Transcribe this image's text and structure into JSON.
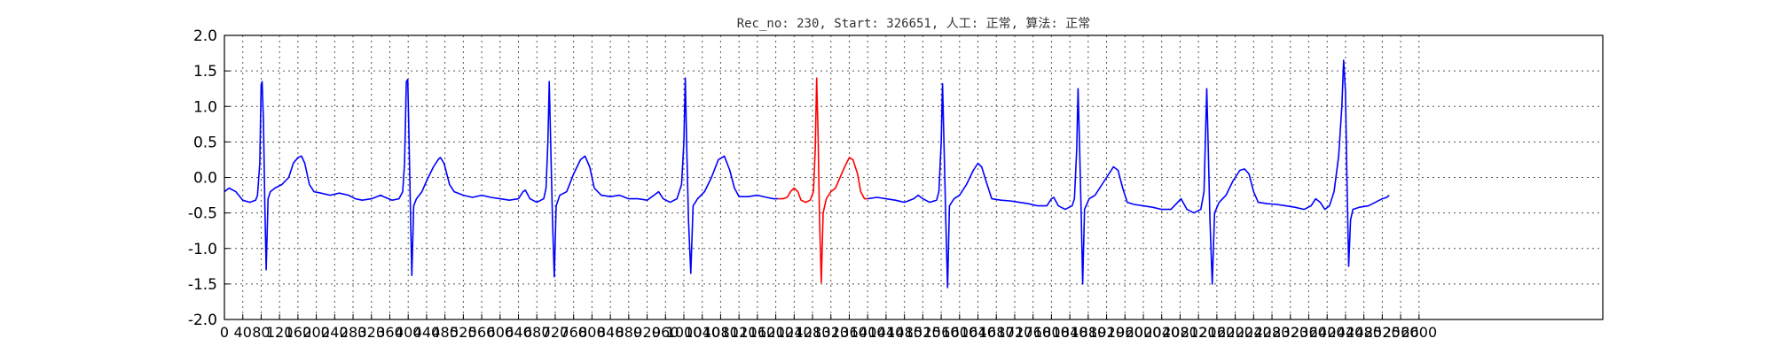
{
  "chart_data": {
    "type": "line",
    "title": "Rec_no: 230, Start: 326651, 人工: 正常, 算法: 正常",
    "xlabel": "",
    "ylabel": "",
    "xlim": [
      0,
      3000
    ],
    "ylim": [
      -2.0,
      2.0
    ],
    "grid": true,
    "grid_style": "dotted",
    "y_ticks": [
      "-2.0",
      "-1.5",
      "-1.0",
      "-0.5",
      "0.0",
      "0.5",
      "1.0",
      "1.5",
      "2.0"
    ],
    "x_ticks": [
      0,
      40,
      80,
      120,
      160,
      200,
      240,
      280,
      320,
      360,
      400,
      440,
      480,
      520,
      560,
      600,
      640,
      680,
      720,
      760,
      800,
      840,
      880,
      920,
      960,
      1000,
      1040,
      1080,
      1120,
      1160,
      1200,
      1240,
      1280,
      1320,
      1360,
      1400,
      1440,
      1480,
      1520,
      1560,
      1600,
      1640,
      1680,
      1720,
      1760,
      1800,
      1840,
      1880,
      1920,
      1960,
      2000,
      2040,
      2080,
      2120,
      2160,
      2200,
      2240,
      2280,
      2320,
      2360,
      2400,
      2440,
      2480,
      2520,
      2560,
      2600
    ],
    "x_tick_labels": [
      "0",
      "40",
      "80",
      "120",
      "160",
      "200",
      "240",
      "280",
      "320",
      "360",
      "400",
      "440",
      "480",
      "520",
      "560",
      "600",
      "640",
      "680",
      "720",
      "760",
      "800",
      "840",
      "880",
      "920",
      "960",
      "1000",
      "1040",
      "1080",
      "1120",
      "1160",
      "1200",
      "1240",
      "1280",
      "1320",
      "1360",
      "1400",
      "1440",
      "1480",
      "1520",
      "1560",
      "1600",
      "1640",
      "1680",
      "1720",
      "1760",
      "1800",
      "1840",
      "1880",
      "1920",
      "1960",
      "2000",
      "2040",
      "2080",
      "2120",
      "2160",
      "2200",
      "2240",
      "2280",
      "2320",
      "2360",
      "2400",
      "2440",
      "2480",
      "2520",
      "2560",
      "2600"
    ],
    "series": [
      {
        "color": "#0000ff",
        "points": [
          [
            0,
            -0.2
          ],
          [
            10,
            -0.15
          ],
          [
            25,
            -0.2
          ],
          [
            40,
            -0.32
          ],
          [
            55,
            -0.35
          ],
          [
            68,
            -0.32
          ],
          [
            72,
            -0.25
          ],
          [
            77,
            0.2
          ],
          [
            80,
            1.3
          ],
          [
            82,
            1.35
          ],
          [
            85,
            0.8
          ],
          [
            88,
            -0.4
          ],
          [
            91,
            -1.3
          ],
          [
            95,
            -0.3
          ],
          [
            100,
            -0.2
          ],
          [
            110,
            -0.15
          ],
          [
            125,
            -0.1
          ],
          [
            140,
            0.0
          ],
          [
            150,
            0.2
          ],
          [
            160,
            0.28
          ],
          [
            168,
            0.3
          ],
          [
            175,
            0.2
          ],
          [
            185,
            -0.1
          ],
          [
            195,
            -0.2
          ],
          [
            210,
            -0.22
          ],
          [
            230,
            -0.25
          ],
          [
            250,
            -0.22
          ],
          [
            270,
            -0.25
          ],
          [
            285,
            -0.3
          ],
          [
            300,
            -0.32
          ],
          [
            320,
            -0.3
          ],
          [
            340,
            -0.25
          ],
          [
            350,
            -0.28
          ],
          [
            365,
            -0.32
          ],
          [
            380,
            -0.3
          ],
          [
            388,
            -0.2
          ],
          [
            392,
            0.2
          ],
          [
            396,
            1.35
          ],
          [
            399,
            1.38
          ],
          [
            402,
            0.5
          ],
          [
            405,
            -0.5
          ],
          [
            408,
            -1.38
          ],
          [
            412,
            -0.4
          ],
          [
            418,
            -0.3
          ],
          [
            430,
            -0.2
          ],
          [
            440,
            -0.05
          ],
          [
            455,
            0.15
          ],
          [
            465,
            0.25
          ],
          [
            470,
            0.28
          ],
          [
            478,
            0.2
          ],
          [
            490,
            -0.1
          ],
          [
            500,
            -0.2
          ],
          [
            520,
            -0.25
          ],
          [
            540,
            -0.28
          ],
          [
            560,
            -0.25
          ],
          [
            580,
            -0.28
          ],
          [
            600,
            -0.3
          ],
          [
            620,
            -0.32
          ],
          [
            640,
            -0.3
          ],
          [
            650,
            -0.2
          ],
          [
            655,
            -0.18
          ],
          [
            665,
            -0.3
          ],
          [
            680,
            -0.35
          ],
          [
            695,
            -0.3
          ],
          [
            700,
            -0.15
          ],
          [
            704,
            0.5
          ],
          [
            707,
            1.35
          ],
          [
            710,
            0.5
          ],
          [
            714,
            -0.6
          ],
          [
            718,
            -1.4
          ],
          [
            722,
            -0.4
          ],
          [
            730,
            -0.25
          ],
          [
            745,
            -0.2
          ],
          [
            760,
            0.05
          ],
          [
            775,
            0.25
          ],
          [
            785,
            0.3
          ],
          [
            795,
            0.15
          ],
          [
            805,
            -0.15
          ],
          [
            820,
            -0.25
          ],
          [
            840,
            -0.27
          ],
          [
            860,
            -0.25
          ],
          [
            880,
            -0.3
          ],
          [
            900,
            -0.3
          ],
          [
            920,
            -0.32
          ],
          [
            935,
            -0.25
          ],
          [
            945,
            -0.2
          ],
          [
            955,
            -0.3
          ],
          [
            970,
            -0.35
          ],
          [
            985,
            -0.3
          ],
          [
            995,
            -0.1
          ],
          [
            1000,
            0.5
          ],
          [
            1003,
            1.4
          ],
          [
            1006,
            0.5
          ],
          [
            1010,
            -0.6
          ],
          [
            1015,
            -1.35
          ],
          [
            1020,
            -0.4
          ],
          [
            1030,
            -0.3
          ],
          [
            1045,
            -0.2
          ],
          [
            1060,
            0.0
          ],
          [
            1075,
            0.25
          ],
          [
            1088,
            0.3
          ],
          [
            1100,
            0.1
          ],
          [
            1110,
            -0.15
          ],
          [
            1120,
            -0.27
          ],
          [
            1140,
            -0.27
          ],
          [
            1160,
            -0.25
          ],
          [
            1180,
            -0.28
          ],
          [
            1195,
            -0.3
          ],
          [
            1205,
            -0.3
          ]
        ]
      },
      {
        "color": "#ff0000",
        "points": [
          [
            1205,
            -0.3
          ],
          [
            1215,
            -0.3
          ],
          [
            1225,
            -0.28
          ],
          [
            1232,
            -0.2
          ],
          [
            1240,
            -0.15
          ],
          [
            1248,
            -0.2
          ],
          [
            1255,
            -0.32
          ],
          [
            1265,
            -0.35
          ],
          [
            1275,
            -0.32
          ],
          [
            1282,
            -0.2
          ],
          [
            1286,
            0.4
          ],
          [
            1289,
            1.4
          ],
          [
            1292,
            0.6
          ],
          [
            1295,
            -0.5
          ],
          [
            1299,
            -1.48
          ],
          [
            1303,
            -0.5
          ],
          [
            1310,
            -0.3
          ],
          [
            1320,
            -0.2
          ],
          [
            1330,
            -0.15
          ],
          [
            1340,
            0.0
          ],
          [
            1350,
            0.15
          ],
          [
            1360,
            0.28
          ],
          [
            1368,
            0.25
          ],
          [
            1378,
            0.05
          ],
          [
            1385,
            -0.2
          ],
          [
            1393,
            -0.3
          ],
          [
            1400,
            -0.3
          ]
        ]
      },
      {
        "color": "#0000ff",
        "points": [
          [
            1400,
            -0.3
          ],
          [
            1420,
            -0.28
          ],
          [
            1440,
            -0.3
          ],
          [
            1460,
            -0.32
          ],
          [
            1480,
            -0.35
          ],
          [
            1500,
            -0.3
          ],
          [
            1510,
            -0.25
          ],
          [
            1520,
            -0.3
          ],
          [
            1535,
            -0.35
          ],
          [
            1550,
            -0.32
          ],
          [
            1555,
            -0.2
          ],
          [
            1560,
            0.5
          ],
          [
            1563,
            1.32
          ],
          [
            1566,
            0.5
          ],
          [
            1570,
            -0.6
          ],
          [
            1574,
            -1.55
          ],
          [
            1578,
            -0.4
          ],
          [
            1588,
            -0.3
          ],
          [
            1600,
            -0.25
          ],
          [
            1615,
            -0.1
          ],
          [
            1630,
            0.1
          ],
          [
            1640,
            0.2
          ],
          [
            1648,
            0.15
          ],
          [
            1660,
            -0.1
          ],
          [
            1670,
            -0.3
          ],
          [
            1690,
            -0.32
          ],
          [
            1710,
            -0.33
          ],
          [
            1730,
            -0.35
          ],
          [
            1750,
            -0.37
          ],
          [
            1770,
            -0.4
          ],
          [
            1790,
            -0.4
          ],
          [
            1800,
            -0.3
          ],
          [
            1805,
            -0.28
          ],
          [
            1815,
            -0.4
          ],
          [
            1830,
            -0.45
          ],
          [
            1845,
            -0.4
          ],
          [
            1850,
            -0.3
          ],
          [
            1855,
            0.4
          ],
          [
            1858,
            1.25
          ],
          [
            1861,
            0.5
          ],
          [
            1865,
            -0.6
          ],
          [
            1868,
            -1.5
          ],
          [
            1872,
            -0.45
          ],
          [
            1882,
            -0.3
          ],
          [
            1895,
            -0.25
          ],
          [
            1910,
            -0.1
          ],
          [
            1925,
            0.05
          ],
          [
            1935,
            0.15
          ],
          [
            1945,
            0.1
          ],
          [
            1955,
            -0.15
          ],
          [
            1965,
            -0.35
          ],
          [
            1980,
            -0.38
          ],
          [
            2000,
            -0.4
          ],
          [
            2020,
            -0.42
          ],
          [
            2040,
            -0.45
          ],
          [
            2060,
            -0.45
          ],
          [
            2075,
            -0.35
          ],
          [
            2082,
            -0.3
          ],
          [
            2095,
            -0.45
          ],
          [
            2110,
            -0.5
          ],
          [
            2125,
            -0.45
          ],
          [
            2132,
            -0.2
          ],
          [
            2135,
            0.5
          ],
          [
            2138,
            1.25
          ],
          [
            2141,
            0.5
          ],
          [
            2145,
            -0.6
          ],
          [
            2150,
            -1.5
          ],
          [
            2155,
            -0.5
          ],
          [
            2165,
            -0.35
          ],
          [
            2180,
            -0.25
          ],
          [
            2195,
            -0.05
          ],
          [
            2210,
            0.1
          ],
          [
            2220,
            0.12
          ],
          [
            2230,
            0.05
          ],
          [
            2240,
            -0.2
          ],
          [
            2250,
            -0.35
          ],
          [
            2270,
            -0.37
          ],
          [
            2290,
            -0.38
          ],
          [
            2310,
            -0.4
          ],
          [
            2330,
            -0.42
          ],
          [
            2350,
            -0.45
          ],
          [
            2365,
            -0.4
          ],
          [
            2375,
            -0.3
          ],
          [
            2385,
            -0.35
          ],
          [
            2395,
            -0.45
          ],
          [
            2405,
            -0.4
          ],
          [
            2415,
            -0.2
          ],
          [
            2425,
            0.3
          ],
          [
            2432,
            1.0
          ],
          [
            2436,
            1.65
          ],
          [
            2440,
            1.2
          ],
          [
            2443,
            0.0
          ],
          [
            2447,
            -1.25
          ],
          [
            2451,
            -0.6
          ],
          [
            2456,
            -0.45
          ],
          [
            2470,
            -0.42
          ],
          [
            2490,
            -0.4
          ],
          [
            2505,
            -0.35
          ],
          [
            2520,
            -0.3
          ],
          [
            2530,
            -0.28
          ],
          [
            2535,
            -0.25
          ]
        ]
      }
    ]
  }
}
